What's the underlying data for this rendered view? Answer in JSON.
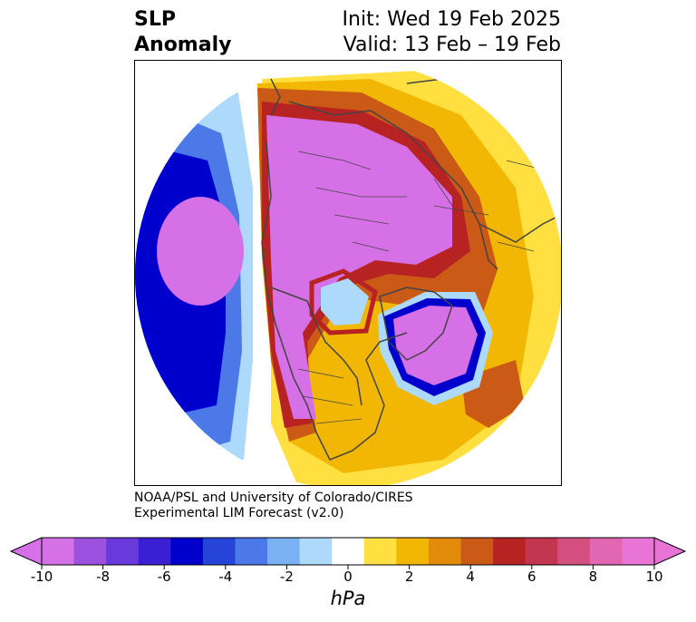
{
  "title": {
    "left_line1": "SLP",
    "left_line2": "Anomaly",
    "right_line1": "Init: Wed 19 Feb 2025",
    "right_line2": "Valid: 13 Feb – 19 Feb"
  },
  "credit": {
    "line1": "NOAA/PSL and University of Colorado/CIRES",
    "line2": "Experimental LIM Forecast (v2.0)"
  },
  "colorbar": {
    "units": "hPa",
    "tick_labels": [
      "-10",
      "-8",
      "-6",
      "-4",
      "-2",
      "0",
      "2",
      "4",
      "6",
      "8",
      "10"
    ],
    "tick_values": [
      -10,
      -8,
      -6,
      -4,
      -2,
      0,
      2,
      4,
      6,
      8,
      10
    ],
    "colors": [
      "#d670e6",
      "#9d52df",
      "#6a39dc",
      "#3b1fd3",
      "#0000cc",
      "#2645d8",
      "#4b79e8",
      "#79b1f2",
      "#add9fb",
      "#ffffff",
      "#ffe040",
      "#f2b705",
      "#e28b0a",
      "#ca5a16",
      "#b72323",
      "#c43650",
      "#d44e80",
      "#e167b3",
      "#e874d6"
    ],
    "under_color": "#d670e6",
    "over_color": "#e874d6"
  },
  "map": {
    "projection": "north-polar-stereographic",
    "colors": {
      "neg_strong": "#d670e6",
      "neg_blue": "#0000cc",
      "neg_mid": "#4b79e8",
      "neg_light": "#add9fb",
      "pos_light": "#ffe040",
      "pos_mid": "#f2b705",
      "pos_orange": "#ca5a16",
      "pos_red": "#b72323",
      "pos_pink": "#e167b3",
      "coast": "#444444"
    }
  }
}
